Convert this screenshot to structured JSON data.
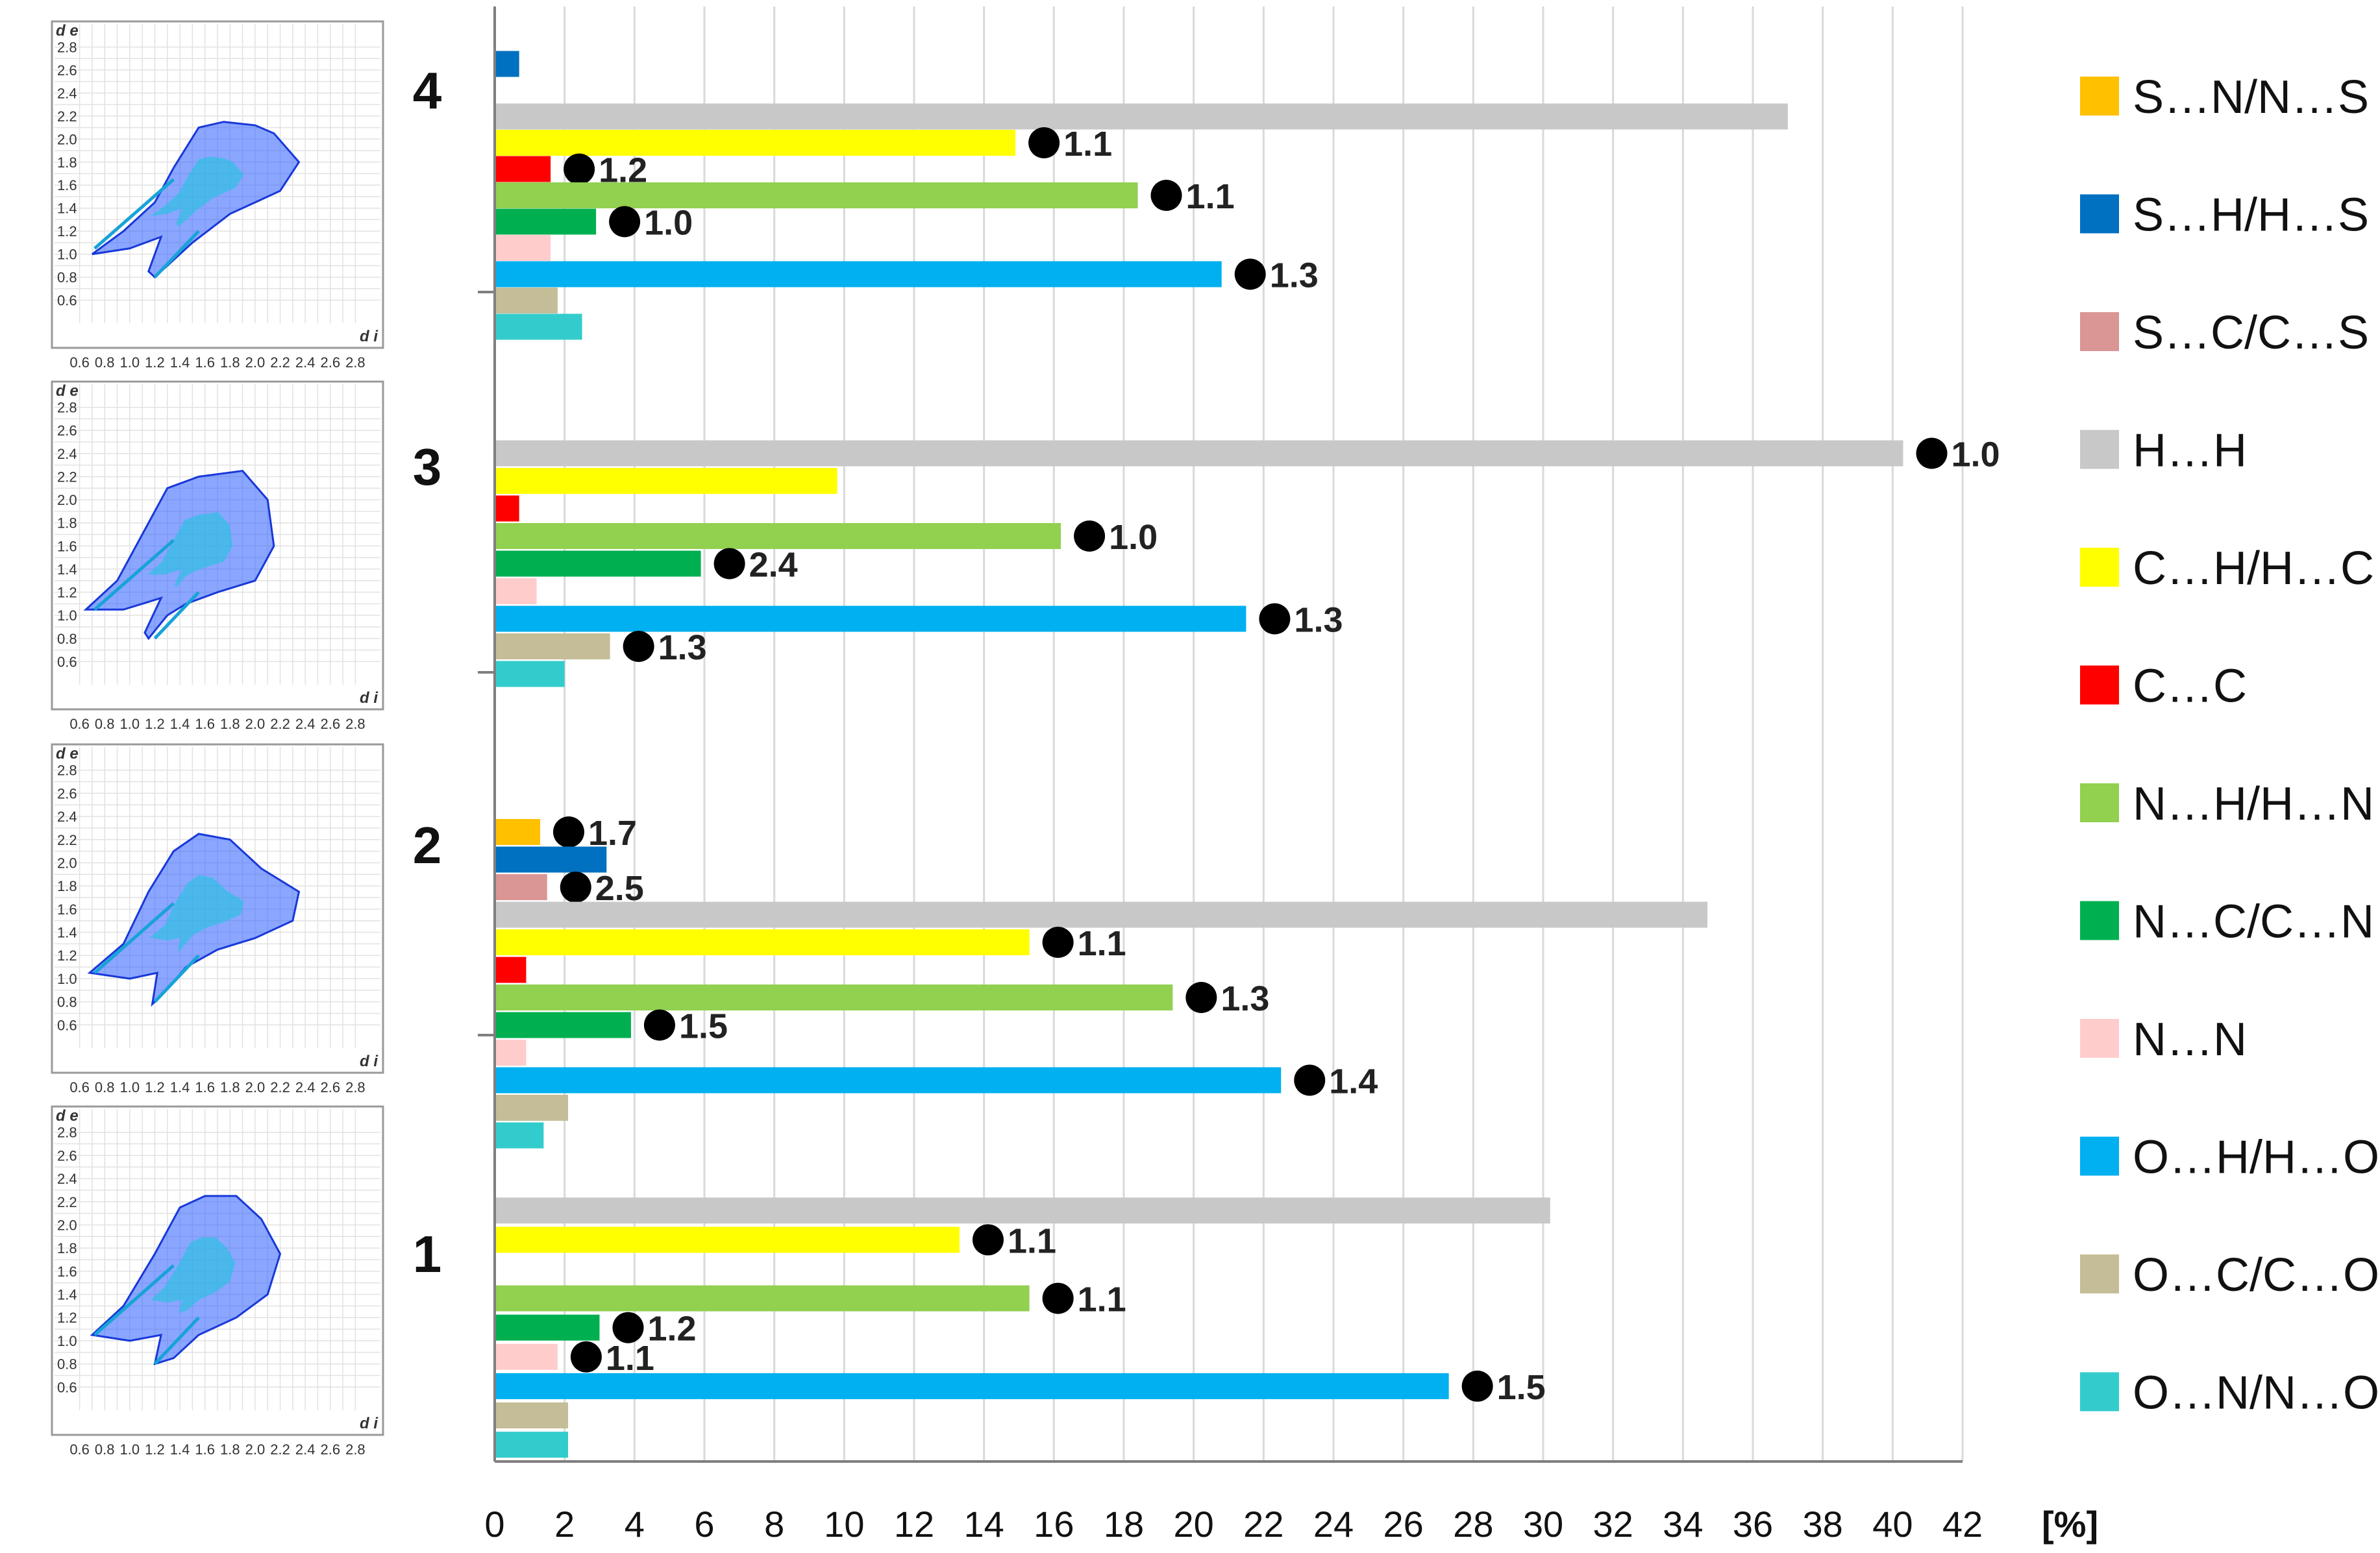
{
  "chart_data": {
    "type": "bar",
    "orientation": "horizontal",
    "x_unit": "[%]",
    "xlim": [
      0,
      42
    ],
    "x_ticks": [
      "0",
      "2",
      "4",
      "6",
      "8",
      "10",
      "12",
      "14",
      "16",
      "18",
      "20",
      "22",
      "24",
      "26",
      "28",
      "30",
      "32",
      "34",
      "36",
      "38",
      "40",
      "42"
    ],
    "grid": true,
    "legend_position": "right",
    "categories": [
      {
        "name": "S…N/N…S",
        "color": "#FFC000"
      },
      {
        "name": "S…H/H…S",
        "color": "#0070C0"
      },
      {
        "name": "S…C/C…S",
        "color": "#DA9694"
      },
      {
        "name": "H…H",
        "color": "#C8C8C8"
      },
      {
        "name": "C…H/H…C",
        "color": "#FFFF00"
      },
      {
        "name": "C…C",
        "color": "#FF0000"
      },
      {
        "name": "N…H/H…N",
        "color": "#92D050"
      },
      {
        "name": "N…C/C…N",
        "color": "#00B050"
      },
      {
        "name": "N…N",
        "color": "#FFCCCC"
      },
      {
        "name": "O…H/H…O",
        "color": "#00B0F0"
      },
      {
        "name": "O…C/C…O",
        "color": "#C4BD97"
      },
      {
        "name": "O…N/N…O",
        "color": "#33CCCC"
      }
    ],
    "groups": [
      {
        "name": "4",
        "values": [
          0,
          0.7,
          0,
          37.0,
          14.9,
          1.6,
          18.4,
          2.9,
          1.6,
          20.8,
          1.8,
          2.5
        ],
        "enrichment": [
          null,
          null,
          null,
          null,
          "1.1",
          "1.2",
          "1.1",
          "1.0",
          null,
          "1.3",
          null,
          null
        ]
      },
      {
        "name": "3",
        "values": [
          0,
          0,
          0,
          40.3,
          9.8,
          0.7,
          16.2,
          5.9,
          1.2,
          21.5,
          3.3,
          2.0
        ],
        "enrichment": [
          null,
          null,
          null,
          "1.0",
          null,
          null,
          "1.0",
          "2.4",
          null,
          "1.3",
          "1.3",
          null
        ]
      },
      {
        "name": "2",
        "values": [
          1.3,
          3.2,
          1.5,
          34.7,
          15.3,
          0.9,
          19.4,
          3.9,
          0.9,
          22.5,
          2.1,
          1.4
        ],
        "enrichment": [
          "1.7",
          null,
          "2.5",
          null,
          "1.1",
          null,
          "1.3",
          "1.5",
          null,
          "1.4",
          null,
          null
        ]
      },
      {
        "name": "1",
        "values": [
          0,
          0,
          0,
          30.2,
          13.3,
          0,
          15.3,
          3.0,
          1.8,
          27.3,
          2.1,
          2.1
        ],
        "enrichment": [
          null,
          null,
          null,
          null,
          "1.1",
          null,
          "1.1",
          "1.2",
          "1.1",
          "1.5",
          null,
          null
        ]
      }
    ]
  },
  "fingerprint_plots": [
    {
      "compound": "4",
      "y_label": "d e",
      "x_label": "d i",
      "y_ticks": [
        "2.8",
        "2.6",
        "2.4",
        "2.2",
        "2.0",
        "1.8",
        "1.6",
        "1.4",
        "1.2",
        "1.0",
        "0.8",
        "0.6"
      ],
      "x_ticks": [
        "0.6",
        "0.8",
        "1.0",
        "1.2",
        "1.4",
        "1.6",
        "1.8",
        "2.0",
        "2.2",
        "2.4",
        "2.6",
        "2.8"
      ]
    },
    {
      "compound": "3",
      "y_label": "d e",
      "x_label": "d i",
      "y_ticks": [
        "2.8",
        "2.6",
        "2.4",
        "2.2",
        "2.0",
        "1.8",
        "1.6",
        "1.4",
        "1.2",
        "1.0",
        "0.8",
        "0.6"
      ],
      "x_ticks": [
        "0.6",
        "0.8",
        "1.0",
        "1.2",
        "1.4",
        "1.6",
        "1.8",
        "2.0",
        "2.2",
        "2.4",
        "2.6",
        "2.8"
      ]
    },
    {
      "compound": "2",
      "y_label": "d e",
      "x_label": "d i",
      "y_ticks": [
        "2.8",
        "2.6",
        "2.4",
        "2.2",
        "2.0",
        "1.8",
        "1.6",
        "1.4",
        "1.2",
        "1.0",
        "0.8",
        "0.6"
      ],
      "x_ticks": [
        "0.6",
        "0.8",
        "1.0",
        "1.2",
        "1.4",
        "1.6",
        "1.8",
        "2.0",
        "2.2",
        "2.4",
        "2.6",
        "2.8"
      ]
    },
    {
      "compound": "1",
      "y_label": "d e",
      "x_label": "d i",
      "y_ticks": [
        "2.8",
        "2.6",
        "2.4",
        "2.2",
        "2.0",
        "1.8",
        "1.6",
        "1.4",
        "1.2",
        "1.0",
        "0.8",
        "0.6"
      ],
      "x_ticks": [
        "0.6",
        "0.8",
        "1.0",
        "1.2",
        "1.4",
        "1.6",
        "1.8",
        "2.0",
        "2.2",
        "2.4",
        "2.6",
        "2.8"
      ]
    }
  ]
}
